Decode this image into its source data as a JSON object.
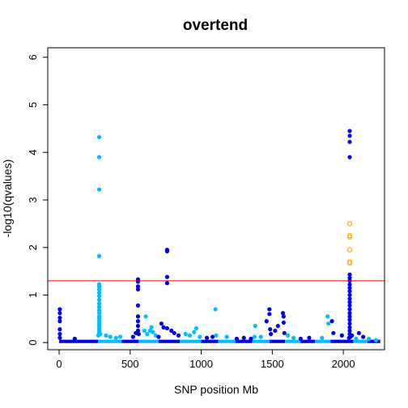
{
  "chart_data": {
    "type": "scatter",
    "title": "overtend",
    "xlabel": "SNP position Mb",
    "ylabel": "-log10(qvalues)",
    "xlim": [
      -80,
      2290
    ],
    "ylim": [
      -0.15,
      6.2
    ],
    "xticks": [
      0,
      500,
      1000,
      1500,
      2000
    ],
    "yticks": [
      0,
      1,
      2,
      3,
      4,
      5,
      6
    ],
    "threshold": 1.3,
    "colors": {
      "chrom_odd": "#0000ee",
      "chrom_even": "#00bfff",
      "significant_hollow": "#ffa500",
      "threshold_line": "#ee0000"
    },
    "chromosome_bands": [
      {
        "start": 0,
        "end": 275,
        "color": "#0000ee"
      },
      {
        "start": 275,
        "end": 440,
        "color": "#00bfff"
      },
      {
        "start": 440,
        "end": 560,
        "color": "#0000ee"
      },
      {
        "start": 560,
        "end": 700,
        "color": "#00bfff"
      },
      {
        "start": 700,
        "end": 850,
        "color": "#0000ee"
      },
      {
        "start": 850,
        "end": 1000,
        "color": "#00bfff"
      },
      {
        "start": 1000,
        "end": 1120,
        "color": "#0000ee"
      },
      {
        "start": 1120,
        "end": 1240,
        "color": "#00bfff"
      },
      {
        "start": 1240,
        "end": 1360,
        "color": "#0000ee"
      },
      {
        "start": 1360,
        "end": 1480,
        "color": "#00bfff"
      },
      {
        "start": 1480,
        "end": 1590,
        "color": "#0000ee"
      },
      {
        "start": 1590,
        "end": 1700,
        "color": "#00bfff"
      },
      {
        "start": 1700,
        "end": 1800,
        "color": "#0000ee"
      },
      {
        "start": 1800,
        "end": 1910,
        "color": "#00bfff"
      },
      {
        "start": 1910,
        "end": 2070,
        "color": "#0000ee"
      },
      {
        "start": 2070,
        "end": 2170,
        "color": "#00bfff"
      },
      {
        "start": 2170,
        "end": 2260,
        "color": "#0000ee"
      }
    ],
    "points": [
      {
        "x": 5,
        "y": 0.7,
        "c": "#0000ee"
      },
      {
        "x": 5,
        "y": 0.62,
        "c": "#0000ee"
      },
      {
        "x": 5,
        "y": 0.52,
        "c": "#0000ee"
      },
      {
        "x": 5,
        "y": 0.45,
        "c": "#0000ee"
      },
      {
        "x": 5,
        "y": 0.28,
        "c": "#0000ee"
      },
      {
        "x": 5,
        "y": 0.18,
        "c": "#0000ee"
      },
      {
        "x": 5,
        "y": 0.1,
        "c": "#0000ee"
      },
      {
        "x": 110,
        "y": 0.08,
        "c": "#0000ee"
      },
      {
        "x": 282,
        "y": 4.32,
        "c": "#00bfff"
      },
      {
        "x": 282,
        "y": 3.9,
        "c": "#00bfff"
      },
      {
        "x": 282,
        "y": 3.22,
        "c": "#00bfff"
      },
      {
        "x": 282,
        "y": 1.82,
        "c": "#00bfff"
      },
      {
        "x": 282,
        "y": 1.23,
        "c": "#00bfff"
      },
      {
        "x": 282,
        "y": 1.18,
        "c": "#00bfff"
      },
      {
        "x": 282,
        "y": 1.12,
        "c": "#00bfff"
      },
      {
        "x": 282,
        "y": 1.05,
        "c": "#00bfff"
      },
      {
        "x": 282,
        "y": 0.98,
        "c": "#00bfff"
      },
      {
        "x": 282,
        "y": 0.9,
        "c": "#00bfff"
      },
      {
        "x": 282,
        "y": 0.82,
        "c": "#00bfff"
      },
      {
        "x": 282,
        "y": 0.75,
        "c": "#00bfff"
      },
      {
        "x": 282,
        "y": 0.68,
        "c": "#00bfff"
      },
      {
        "x": 282,
        "y": 0.62,
        "c": "#00bfff"
      },
      {
        "x": 282,
        "y": 0.55,
        "c": "#00bfff"
      },
      {
        "x": 282,
        "y": 0.5,
        "c": "#00bfff"
      },
      {
        "x": 282,
        "y": 0.45,
        "c": "#00bfff"
      },
      {
        "x": 282,
        "y": 0.4,
        "c": "#00bfff"
      },
      {
        "x": 282,
        "y": 0.35,
        "c": "#00bfff"
      },
      {
        "x": 282,
        "y": 0.3,
        "c": "#00bfff"
      },
      {
        "x": 282,
        "y": 0.25,
        "c": "#00bfff"
      },
      {
        "x": 282,
        "y": 0.2,
        "c": "#00bfff"
      },
      {
        "x": 290,
        "y": 0.18,
        "c": "#00bfff"
      },
      {
        "x": 275,
        "y": 0.15,
        "c": "#00bfff"
      },
      {
        "x": 330,
        "y": 0.15,
        "c": "#00bfff"
      },
      {
        "x": 360,
        "y": 0.12,
        "c": "#00bfff"
      },
      {
        "x": 400,
        "y": 0.1,
        "c": "#00bfff"
      },
      {
        "x": 430,
        "y": 0.12,
        "c": "#00bfff"
      },
      {
        "x": 555,
        "y": 1.33,
        "c": "#0000ee"
      },
      {
        "x": 555,
        "y": 1.28,
        "c": "#0000ee"
      },
      {
        "x": 555,
        "y": 1.18,
        "c": "#0000ee"
      },
      {
        "x": 555,
        "y": 1.12,
        "c": "#0000ee"
      },
      {
        "x": 555,
        "y": 0.78,
        "c": "#0000ee"
      },
      {
        "x": 555,
        "y": 0.55,
        "c": "#0000ee"
      },
      {
        "x": 555,
        "y": 0.45,
        "c": "#0000ee"
      },
      {
        "x": 555,
        "y": 0.35,
        "c": "#0000ee"
      },
      {
        "x": 555,
        "y": 0.25,
        "c": "#0000ee"
      },
      {
        "x": 560,
        "y": 0.18,
        "c": "#0000ee"
      },
      {
        "x": 520,
        "y": 0.12,
        "c": "#0000ee"
      },
      {
        "x": 540,
        "y": 0.2,
        "c": "#0000ee"
      },
      {
        "x": 600,
        "y": 0.25,
        "c": "#00bfff"
      },
      {
        "x": 610,
        "y": 0.55,
        "c": "#00bfff"
      },
      {
        "x": 620,
        "y": 0.18,
        "c": "#00bfff"
      },
      {
        "x": 640,
        "y": 0.25,
        "c": "#00bfff"
      },
      {
        "x": 650,
        "y": 0.32,
        "c": "#00bfff"
      },
      {
        "x": 660,
        "y": 0.22,
        "c": "#00bfff"
      },
      {
        "x": 680,
        "y": 0.15,
        "c": "#00bfff"
      },
      {
        "x": 700,
        "y": 0.12,
        "c": "#0000ee"
      },
      {
        "x": 720,
        "y": 0.4,
        "c": "#0000ee"
      },
      {
        "x": 735,
        "y": 0.32,
        "c": "#0000ee"
      },
      {
        "x": 760,
        "y": 1.95,
        "c": "#0000ee"
      },
      {
        "x": 760,
        "y": 1.92,
        "c": "#0000ee"
      },
      {
        "x": 760,
        "y": 1.38,
        "c": "#0000ee"
      },
      {
        "x": 760,
        "y": 1.25,
        "c": "#0000ee"
      },
      {
        "x": 760,
        "y": 0.3,
        "c": "#0000ee"
      },
      {
        "x": 790,
        "y": 0.25,
        "c": "#0000ee"
      },
      {
        "x": 810,
        "y": 0.2,
        "c": "#0000ee"
      },
      {
        "x": 840,
        "y": 0.15,
        "c": "#0000ee"
      },
      {
        "x": 890,
        "y": 0.18,
        "c": "#00bfff"
      },
      {
        "x": 920,
        "y": 0.15,
        "c": "#00bfff"
      },
      {
        "x": 950,
        "y": 0.22,
        "c": "#00bfff"
      },
      {
        "x": 965,
        "y": 0.3,
        "c": "#00bfff"
      },
      {
        "x": 990,
        "y": 0.12,
        "c": "#00bfff"
      },
      {
        "x": 1040,
        "y": 0.1,
        "c": "#0000ee"
      },
      {
        "x": 1080,
        "y": 0.12,
        "c": "#0000ee"
      },
      {
        "x": 1100,
        "y": 0.7,
        "c": "#00bfff"
      },
      {
        "x": 1105,
        "y": 0.15,
        "c": "#00bfff"
      },
      {
        "x": 1180,
        "y": 0.12,
        "c": "#00bfff"
      },
      {
        "x": 1250,
        "y": 0.08,
        "c": "#0000ee"
      },
      {
        "x": 1300,
        "y": 0.1,
        "c": "#0000ee"
      },
      {
        "x": 1350,
        "y": 0.08,
        "c": "#0000ee"
      },
      {
        "x": 1375,
        "y": 0.12,
        "c": "#00bfff"
      },
      {
        "x": 1380,
        "y": 0.35,
        "c": "#00bfff"
      },
      {
        "x": 1420,
        "y": 0.12,
        "c": "#00bfff"
      },
      {
        "x": 1460,
        "y": 0.45,
        "c": "#0000ee"
      },
      {
        "x": 1480,
        "y": 0.7,
        "c": "#0000ee"
      },
      {
        "x": 1480,
        "y": 0.6,
        "c": "#0000ee"
      },
      {
        "x": 1485,
        "y": 0.28,
        "c": "#0000ee"
      },
      {
        "x": 1490,
        "y": 0.18,
        "c": "#0000ee"
      },
      {
        "x": 1520,
        "y": 0.25,
        "c": "#0000ee"
      },
      {
        "x": 1540,
        "y": 0.35,
        "c": "#0000ee"
      },
      {
        "x": 1575,
        "y": 0.62,
        "c": "#0000ee"
      },
      {
        "x": 1580,
        "y": 0.55,
        "c": "#0000ee"
      },
      {
        "x": 1580,
        "y": 0.42,
        "c": "#0000ee"
      },
      {
        "x": 1585,
        "y": 0.2,
        "c": "#0000ee"
      },
      {
        "x": 1610,
        "y": 0.15,
        "c": "#00bfff"
      },
      {
        "x": 1650,
        "y": 0.1,
        "c": "#00bfff"
      },
      {
        "x": 1700,
        "y": 0.08,
        "c": "#0000ee"
      },
      {
        "x": 1760,
        "y": 0.1,
        "c": "#0000ee"
      },
      {
        "x": 1850,
        "y": 0.1,
        "c": "#00bfff"
      },
      {
        "x": 1890,
        "y": 0.55,
        "c": "#00bfff"
      },
      {
        "x": 1895,
        "y": 0.4,
        "c": "#00bfff"
      },
      {
        "x": 1920,
        "y": 0.45,
        "c": "#0000ee"
      },
      {
        "x": 1930,
        "y": 0.2,
        "c": "#0000ee"
      },
      {
        "x": 1990,
        "y": 0.15,
        "c": "#0000ee"
      },
      {
        "x": 2045,
        "y": 4.45,
        "c": "#0000ee"
      },
      {
        "x": 2045,
        "y": 4.35,
        "c": "#0000ee"
      },
      {
        "x": 2045,
        "y": 4.22,
        "c": "#0000ee"
      },
      {
        "x": 2045,
        "y": 3.9,
        "c": "#0000ee"
      },
      {
        "x": 2045,
        "y": 1.43,
        "c": "#0000ee"
      },
      {
        "x": 2045,
        "y": 1.36,
        "c": "#0000ee"
      },
      {
        "x": 2045,
        "y": 1.3,
        "c": "#0000ee"
      },
      {
        "x": 2045,
        "y": 1.22,
        "c": "#0000ee"
      },
      {
        "x": 2045,
        "y": 1.15,
        "c": "#0000ee"
      },
      {
        "x": 2045,
        "y": 1.08,
        "c": "#0000ee"
      },
      {
        "x": 2045,
        "y": 1.0,
        "c": "#0000ee"
      },
      {
        "x": 2045,
        "y": 0.92,
        "c": "#0000ee"
      },
      {
        "x": 2045,
        "y": 0.85,
        "c": "#0000ee"
      },
      {
        "x": 2045,
        "y": 0.78,
        "c": "#0000ee"
      },
      {
        "x": 2045,
        "y": 0.7,
        "c": "#0000ee"
      },
      {
        "x": 2045,
        "y": 0.62,
        "c": "#0000ee"
      },
      {
        "x": 2045,
        "y": 0.55,
        "c": "#0000ee"
      },
      {
        "x": 2045,
        "y": 0.48,
        "c": "#0000ee"
      },
      {
        "x": 2045,
        "y": 0.4,
        "c": "#0000ee"
      },
      {
        "x": 2045,
        "y": 0.32,
        "c": "#0000ee"
      },
      {
        "x": 2045,
        "y": 0.25,
        "c": "#0000ee"
      },
      {
        "x": 2045,
        "y": 0.18,
        "c": "#0000ee"
      },
      {
        "x": 2050,
        "y": 0.12,
        "c": "#0000ee"
      },
      {
        "x": 2040,
        "y": 0.1,
        "c": "#0000ee"
      },
      {
        "x": 2060,
        "y": 0.15,
        "c": "#0000ee"
      },
      {
        "x": 2090,
        "y": 0.08,
        "c": "#00bfff"
      },
      {
        "x": 2110,
        "y": 0.2,
        "c": "#0000ee"
      },
      {
        "x": 2140,
        "y": 0.12,
        "c": "#0000ee"
      },
      {
        "x": 2180,
        "y": 0.08,
        "c": "#00bfff"
      },
      {
        "x": 2230,
        "y": 0.05,
        "c": "#00bfff"
      }
    ],
    "hollow_points": [
      {
        "x": 2045,
        "y": 2.5
      },
      {
        "x": 2045,
        "y": 2.25
      },
      {
        "x": 2045,
        "y": 2.22
      },
      {
        "x": 2045,
        "y": 1.95
      },
      {
        "x": 2045,
        "y": 1.7
      },
      {
        "x": 2045,
        "y": 1.67
      }
    ]
  }
}
